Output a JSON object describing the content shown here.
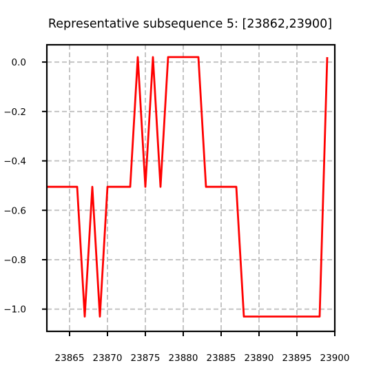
{
  "chart_data": {
    "type": "line",
    "title": "Representative subsequence 5: [23862,23900]",
    "xlabel": "",
    "ylabel": "",
    "xlim": [
      23862,
      23900
    ],
    "ylim": [
      -1.09,
      0.07
    ],
    "x_ticks": [
      23865,
      23870,
      23875,
      23880,
      23885,
      23890,
      23895,
      23900
    ],
    "y_ticks": [
      0.0,
      -0.2,
      -0.4,
      -0.6,
      -0.8,
      -1.0
    ],
    "y_tick_labels": [
      "0.0",
      "−0.2",
      "−0.4",
      "−0.6",
      "−0.8",
      "−1.0"
    ],
    "grid": true,
    "grid_style": "dashed",
    "series": [
      {
        "color": "#ff0000",
        "x": [
          23862,
          23863,
          23864,
          23865,
          23866,
          23867,
          23868,
          23869,
          23870,
          23871,
          23872,
          23873,
          23874,
          23875,
          23876,
          23877,
          23878,
          23879,
          23880,
          23881,
          23882,
          23883,
          23884,
          23885,
          23886,
          23887,
          23888,
          23889,
          23890,
          23891,
          23892,
          23893,
          23894,
          23895,
          23896,
          23897,
          23898,
          23899
        ],
        "values": [
          -0.505,
          -0.505,
          -0.505,
          -0.505,
          -0.505,
          -1.03,
          -0.505,
          -1.03,
          -0.505,
          -0.505,
          -0.505,
          -0.505,
          0.02,
          -0.505,
          0.02,
          -0.505,
          0.02,
          0.02,
          0.02,
          0.02,
          0.02,
          -0.505,
          -0.505,
          -0.505,
          -0.505,
          -0.505,
          -1.03,
          -1.03,
          -1.03,
          -1.03,
          -1.03,
          -1.03,
          -1.03,
          -1.03,
          -1.03,
          -1.03,
          -1.03,
          0.02
        ]
      }
    ]
  }
}
